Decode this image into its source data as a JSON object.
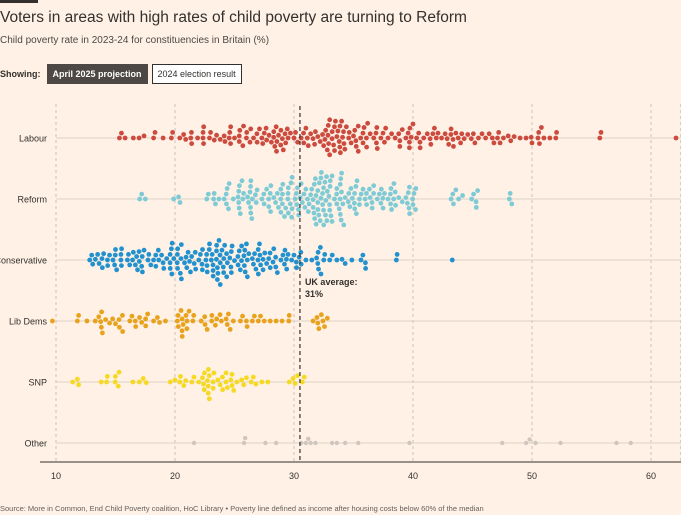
{
  "header": {
    "title": "Voters in areas with high rates of child poverty are turning to Reform",
    "subtitle": "Child poverty rate in 2023-24 for constituencies in Britain (%)"
  },
  "controls": {
    "showing_label": "Showing:",
    "options": [
      "April 2025 projection",
      "2024 election result"
    ],
    "selected": "April 2025 projection"
  },
  "footer": {
    "source": "Source: More in Common, End Child Poverty coalition, HoC Library • Poverty line defined as income after housing costs below 60% of the median"
  },
  "colors": {
    "background": "#fff1e5",
    "Labour": "#cc4a3e",
    "Reform": "#7ecbd6",
    "Conservative": "#2191cf",
    "Lib Dems": "#e8a21c",
    "SNP": "#f5d923",
    "Other": "#cfc6c0"
  },
  "chart_data": {
    "type": "scatter",
    "subtype": "beeswarm",
    "xlim": [
      9.5,
      62.5
    ],
    "x_ticks": [
      10,
      20,
      30,
      40,
      50,
      60
    ],
    "grid": true,
    "average_line": {
      "value": 30.5,
      "label_line1": "UK average:",
      "label_line2": "31%"
    },
    "series": [
      {
        "name": "Labour",
        "values": [
          15.5,
          16.5,
          17.4,
          18.2,
          19.0,
          19.8,
          20.4,
          20.9,
          21.4,
          21.9,
          22.4,
          22.9,
          23.3,
          23.8,
          24.2,
          24.6,
          25.0,
          25.4,
          25.7,
          26.0,
          26.3,
          26.6,
          26.9,
          27.1,
          27.3,
          27.5,
          27.7,
          27.9,
          28.1,
          28.3,
          28.5,
          28.7,
          28.9,
          29.1,
          29.3,
          29.5,
          29.7,
          30.0,
          30.3,
          30.6,
          30.8,
          31.0,
          31.2,
          31.4,
          31.6,
          31.8,
          32.0,
          32.2,
          32.4,
          32.6,
          32.8,
          33.0,
          33.2,
          33.4,
          33.6,
          33.8,
          34.0,
          34.2,
          34.4,
          34.6,
          34.8,
          35.0,
          35.2,
          35.4,
          35.6,
          35.8,
          36.1,
          36.4,
          36.7,
          37.0,
          37.3,
          37.6,
          37.9,
          38.2,
          38.5,
          38.8,
          39.1,
          39.4,
          39.7,
          40.0,
          40.3,
          40.6,
          40.9,
          41.2,
          41.5,
          41.8,
          42.1,
          42.4,
          42.7,
          43.0,
          43.2,
          43.4,
          43.6,
          43.8,
          44.0,
          44.3,
          44.6,
          44.9,
          45.2,
          45.5,
          45.8,
          46.1,
          46.4,
          46.8,
          47.2,
          47.6,
          48.0,
          48.5,
          49.0,
          49.5,
          50.0,
          50.5,
          51.0,
          51.5,
          52.0,
          55.7,
          55.8,
          62.1
        ],
        "bee_count": 210
      },
      {
        "name": "Reform",
        "values": [
          17.2,
          20.3,
          22.8,
          23.4,
          24.3,
          24.9,
          25.3,
          25.7,
          26.1,
          26.5,
          26.9,
          27.3,
          27.7,
          28.0,
          28.3,
          28.6,
          28.9,
          29.2,
          29.5,
          29.8,
          30.1,
          30.4,
          30.7,
          31.0,
          31.2,
          31.4,
          31.6,
          31.8,
          32.0,
          32.2,
          32.4,
          32.6,
          32.8,
          33.0,
          33.2,
          33.4,
          33.6,
          33.8,
          34.0,
          34.3,
          34.6,
          34.9,
          35.2,
          35.5,
          35.8,
          36.1,
          36.4,
          36.7,
          37.0,
          37.3,
          37.6,
          37.9,
          38.2,
          38.5,
          38.8,
          39.1,
          39.4,
          39.7,
          40.0,
          43.2,
          43.4,
          43.6,
          45.3,
          48.1,
          48.3
        ],
        "bee_count": 205
      },
      {
        "name": "Conservative",
        "values": [
          13.0,
          13.5,
          14.0,
          14.5,
          15.0,
          15.5,
          16.0,
          16.5,
          17.0,
          17.4,
          17.8,
          18.2,
          18.6,
          19.0,
          19.3,
          19.6,
          19.9,
          20.2,
          20.5,
          20.8,
          21.1,
          21.4,
          21.7,
          22.0,
          22.3,
          22.6,
          22.9,
          23.2,
          23.5,
          23.8,
          24.1,
          24.4,
          24.7,
          25.0,
          25.3,
          25.6,
          25.9,
          26.2,
          26.5,
          26.8,
          27.1,
          27.4,
          27.7,
          28.0,
          28.3,
          28.6,
          28.9,
          29.2,
          29.5,
          29.8,
          30.2,
          30.6,
          31.0,
          31.5,
          32.0,
          32.5,
          33.0,
          33.6,
          34.3,
          36.0,
          38.6,
          43.3
        ],
        "bee_count": 185
      },
      {
        "name": "Lib Dems",
        "values": [
          9.7,
          11.9,
          12.6,
          13.3,
          13.9,
          14.5,
          15.0,
          15.3,
          15.6,
          16.2,
          16.7,
          17.2,
          17.7,
          18.2,
          18.7,
          19.2,
          20.2,
          20.6,
          21.0,
          21.5,
          22.2,
          22.7,
          23.1,
          23.5,
          23.9,
          24.3,
          24.9,
          25.5,
          26.0,
          26.5,
          27.0,
          27.5,
          28.0,
          28.5,
          29.0,
          29.6,
          31.6,
          32.0,
          32.3,
          32.8
        ],
        "bee_count": 82
      },
      {
        "name": "SNP",
        "values": [
          11.4,
          11.9,
          13.8,
          15.3,
          17.0,
          19.6,
          20.0,
          20.4,
          20.9,
          21.6,
          22.0,
          22.4,
          22.8,
          23.2,
          23.6,
          24.0,
          24.4,
          24.8,
          25.2,
          25.6,
          26.0,
          26.4,
          26.8,
          27.3,
          27.8,
          29.6,
          30.3,
          30.7
        ],
        "bee_count": 62
      },
      {
        "name": "Other",
        "values": [
          21.6,
          25.8,
          25.9,
          27.6,
          28.5,
          30.6,
          31.0,
          31.2,
          31.4,
          31.8,
          33.2,
          33.6,
          34.3,
          35.4,
          39.7,
          47.5,
          49.5,
          49.8,
          50.3,
          52.4,
          57.1,
          58.3
        ],
        "bee_count": 22
      }
    ]
  }
}
